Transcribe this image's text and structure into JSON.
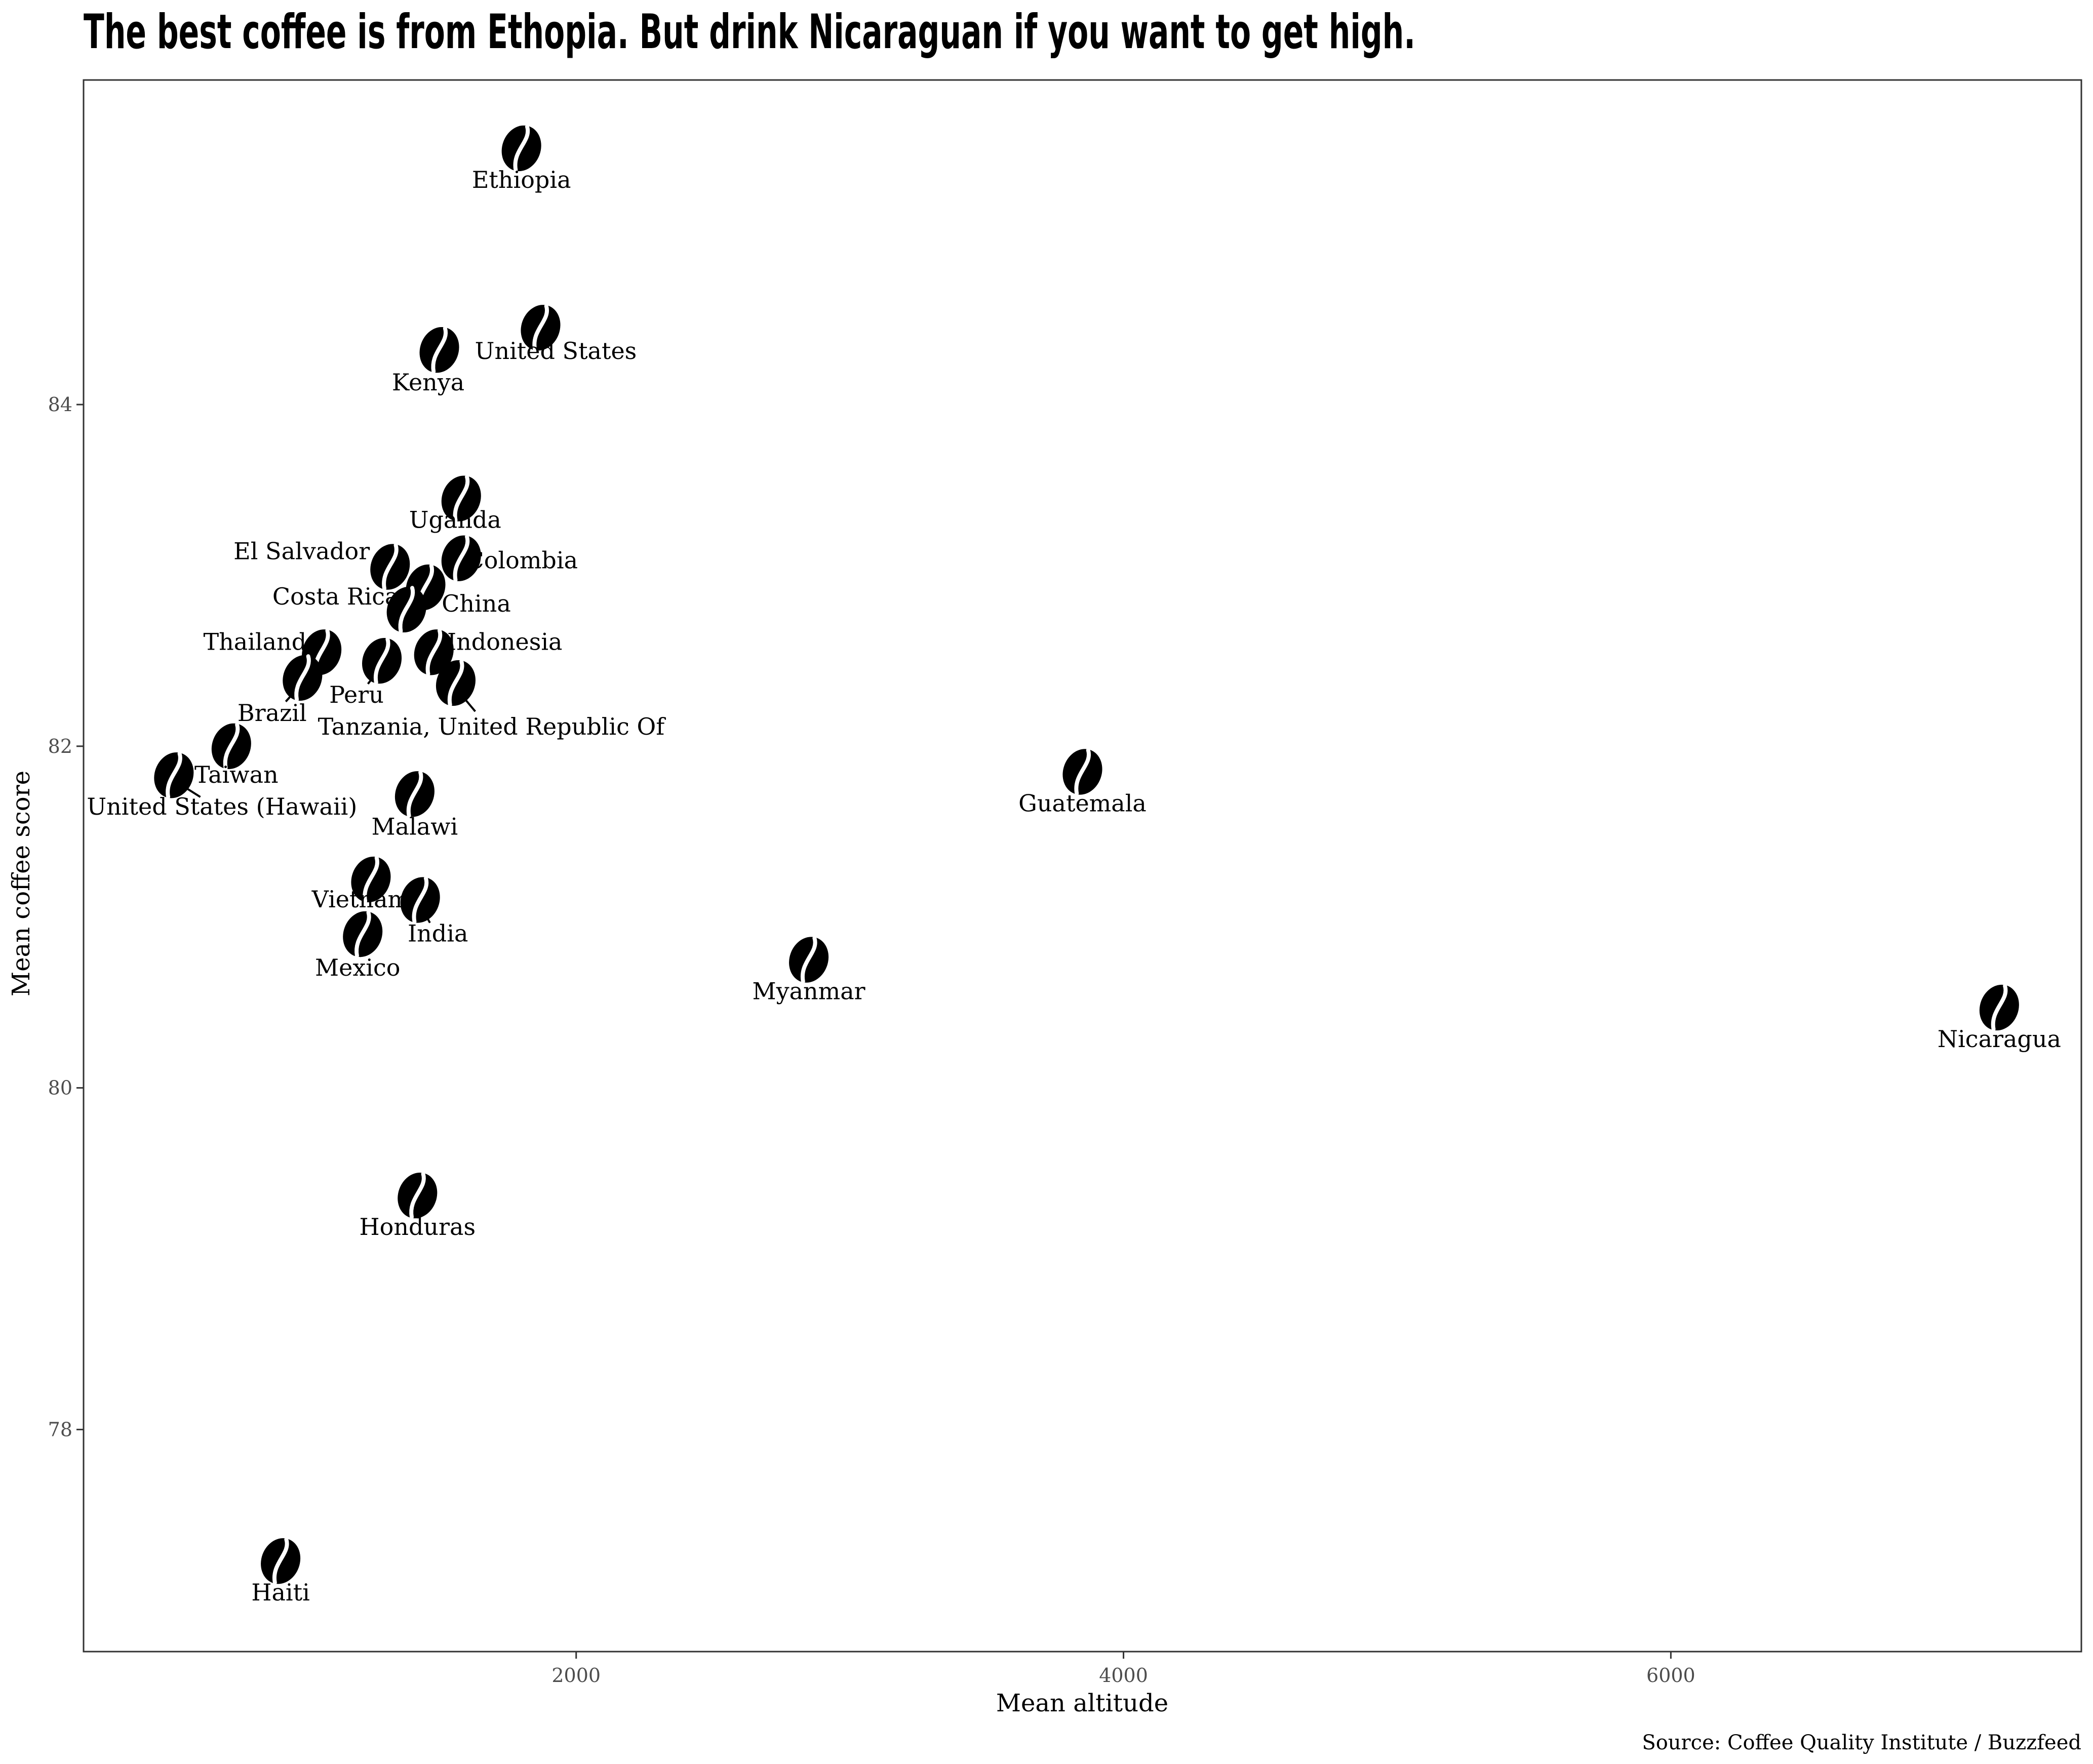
{
  "chart_data": {
    "type": "scatter",
    "title": "The best coffee is from Ethopia. But drink Nicaraguan if you want to get high.",
    "xlabel": "Mean altitude",
    "ylabel": "Mean coffee score",
    "caption": "Source: Coffee Quality Institute / Buzzfeed",
    "xlim": [
      200,
      7500
    ],
    "ylim": [
      76.7,
      85.9
    ],
    "x_ticks": [
      2000,
      4000,
      6000
    ],
    "y_ticks": [
      78,
      80,
      82,
      84
    ],
    "x_tick_labels": [
      "2000",
      "4000",
      "6000"
    ],
    "y_tick_labels": [
      "78",
      "80",
      "82",
      "84"
    ],
    "grid": false,
    "marker": "coffee-bean",
    "points": [
      {
        "label": "Ethiopia",
        "x": 1800,
        "y": 85.5
      },
      {
        "label": "United States",
        "x": 1870,
        "y": 84.45
      },
      {
        "label": "Kenya",
        "x": 1500,
        "y": 84.32
      },
      {
        "label": "Uganda",
        "x": 1580,
        "y": 83.45
      },
      {
        "label": "Colombia",
        "x": 1580,
        "y": 83.1
      },
      {
        "label": "El Salvador",
        "x": 1320,
        "y": 83.05
      },
      {
        "label": "China",
        "x": 1450,
        "y": 82.93
      },
      {
        "label": "Costa Rica",
        "x": 1380,
        "y": 82.8
      },
      {
        "label": "Thailand",
        "x": 1070,
        "y": 82.55
      },
      {
        "label": "Indonesia",
        "x": 1480,
        "y": 82.55
      },
      {
        "label": "Peru",
        "x": 1290,
        "y": 82.5
      },
      {
        "label": "Brazil",
        "x": 1000,
        "y": 82.4
      },
      {
        "label": "Tanzania, United Republic Of",
        "x": 1560,
        "y": 82.37
      },
      {
        "label": "Taiwan",
        "x": 740,
        "y": 82.0
      },
      {
        "label": "United States (Hawaii)",
        "x": 530,
        "y": 81.83
      },
      {
        "label": "Malawi",
        "x": 1410,
        "y": 81.72
      },
      {
        "label": "Vietnam",
        "x": 1250,
        "y": 81.22
      },
      {
        "label": "India",
        "x": 1430,
        "y": 81.1
      },
      {
        "label": "Mexico",
        "x": 1220,
        "y": 80.9
      },
      {
        "label": "Guatemala",
        "x": 3850,
        "y": 81.85
      },
      {
        "label": "Myanmar",
        "x": 2850,
        "y": 80.75
      },
      {
        "label": "Nicaragua",
        "x": 7200,
        "y": 80.47
      },
      {
        "label": "Honduras",
        "x": 1420,
        "y": 79.37
      },
      {
        "label": "Haiti",
        "x": 920,
        "y": 77.23
      }
    ]
  }
}
